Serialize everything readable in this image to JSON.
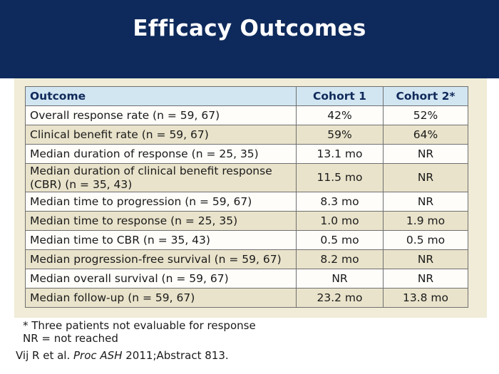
{
  "title": "Efficacy Outcomes",
  "table": {
    "headers": [
      "Outcome",
      "Cohort 1",
      "Cohort 2*"
    ],
    "rows": [
      {
        "outcome": "Overall response rate (n = 59, 67)",
        "cohort1": "42%",
        "cohort2": "52%"
      },
      {
        "outcome": "Clinical benefit rate (n = 59, 67)",
        "cohort1": "59%",
        "cohort2": "64%"
      },
      {
        "outcome": "Median duration of response (n = 25, 35)",
        "cohort1": "13.1 mo",
        "cohort2": "NR"
      },
      {
        "outcome_line1": "Median duration of clinical benefit response",
        "outcome_line2": "(CBR) (n = 35, 43)",
        "cohort1": "11.5 mo",
        "cohort2": "NR"
      },
      {
        "outcome": "Median time to progression (n = 59, 67)",
        "cohort1": "8.3 mo",
        "cohort2": "NR"
      },
      {
        "outcome": "Median time to response (n = 25, 35)",
        "cohort1": "1.0 mo",
        "cohort2": "1.9 mo"
      },
      {
        "outcome": "Median time to CBR (n = 35, 43)",
        "cohort1": "0.5 mo",
        "cohort2": "0.5 mo"
      },
      {
        "outcome": "Median progression-free survival (n = 59, 67)",
        "cohort1": "8.2 mo",
        "cohort2": "NR"
      },
      {
        "outcome": "Median overall survival (n = 59, 67)",
        "cohort1": "NR",
        "cohort2": "NR"
      },
      {
        "outcome": "Median follow-up (n = 59, 67)",
        "cohort1": "23.2 mo",
        "cohort2": "13.8 mo"
      }
    ]
  },
  "notes": {
    "footnote": "* Three patients not evaluable for response",
    "abbreviation": "NR = not reached"
  },
  "citation": {
    "authors": "Vij R et al.",
    "journal": "Proc ASH",
    "details": "2011;Abstract 813."
  }
}
